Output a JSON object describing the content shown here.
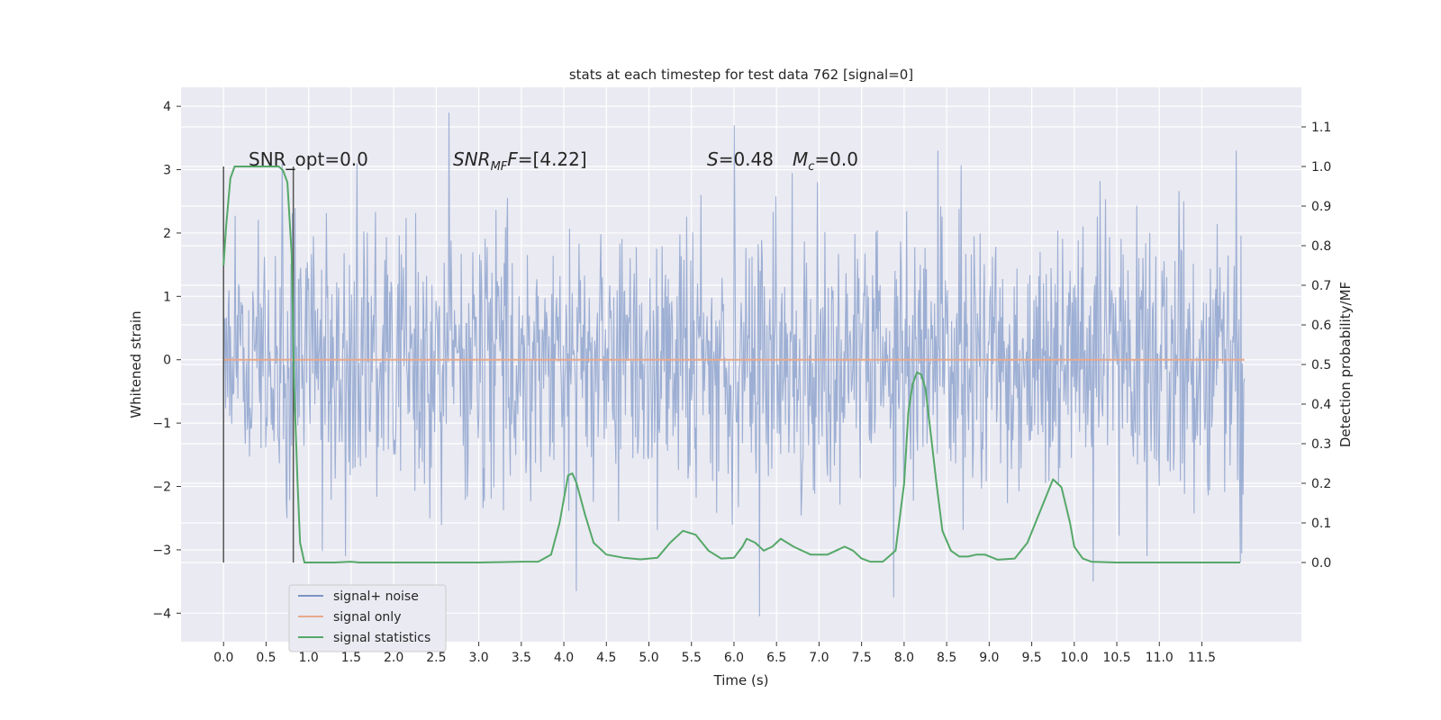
{
  "chart_data": {
    "type": "line",
    "title": "stats at each timestep for test data 762 [signal=0]",
    "xlabel": "Time (s)",
    "ylabel_left": "Whitened strain",
    "ylabel_right": "Detection probability/MF",
    "xlim": [
      -0.5,
      12.67
    ],
    "ylim_left": [
      -4.45,
      4.3
    ],
    "ylim_right": [
      -0.2,
      1.2
    ],
    "x_ticks": [
      "0.0",
      "0.5",
      "1.0",
      "1.5",
      "2.0",
      "2.5",
      "3.0",
      "3.5",
      "4.0",
      "4.5",
      "5.0",
      "5.5",
      "6.0",
      "6.5",
      "7.0",
      "7.5",
      "8.0",
      "8.5",
      "9.0",
      "9.5",
      "10.0",
      "10.5",
      "11.0",
      "11.5"
    ],
    "y_ticks_left": [
      "4",
      "3",
      "2",
      "1",
      "0",
      "−1",
      "−2",
      "−3",
      "−4"
    ],
    "y_ticks_right": [
      "1.1",
      "1.0",
      "0.9",
      "0.8",
      "0.7",
      "0.6",
      "0.5",
      "0.4",
      "0.3",
      "0.2",
      "0.1",
      "0.0"
    ],
    "grid": true,
    "legend": {
      "placement": "lower-left",
      "entries": [
        {
          "label": "signal+ noise",
          "color": "#7b94c6"
        },
        {
          "label": "signal only",
          "color": "#e8a98b"
        },
        {
          "label": "signal statistics",
          "color": "#55a868"
        }
      ]
    },
    "annotations": {
      "snr_opt": "SNR_opt=0.0",
      "snr_mf_main": "SNR",
      "snr_mf_sub": "MF",
      "snr_mf_value": "=[4.22]",
      "s_label": "S",
      "s_value": "=0.48",
      "mc_main": "M",
      "mc_sub": "c",
      "mc_value": "=0.0"
    },
    "vertical_lines_x": [
      0.0,
      0.82
    ],
    "vertical_lines_y_range": [
      -3.2,
      3.05
    ],
    "noise_series": {
      "name": "signal+ noise",
      "x_range": [
        0.0,
        12.0
      ],
      "samples": 1500,
      "sigma": 1.05,
      "peaks": [
        {
          "x": 2.65,
          "y": 3.9
        },
        {
          "x": 6.0,
          "y": 3.7
        },
        {
          "x": 8.4,
          "y": 3.3
        },
        {
          "x": 11.9,
          "y": 3.3
        },
        {
          "x": 6.3,
          "y": -4.05
        },
        {
          "x": 7.88,
          "y": -3.75
        },
        {
          "x": 4.15,
          "y": -3.65
        },
        {
          "x": 10.22,
          "y": -3.5
        },
        {
          "x": 11.95,
          "y": -3.2
        }
      ]
    },
    "signal_only_series": {
      "name": "signal only",
      "x": [
        0.0,
        12.0
      ],
      "y": [
        0.0,
        0.0
      ]
    },
    "statistics_series": {
      "name": "signal statistics",
      "x": [
        0.0,
        0.03,
        0.08,
        0.13,
        0.2,
        0.3,
        0.45,
        0.6,
        0.65,
        0.7,
        0.75,
        0.8,
        0.83,
        0.87,
        0.9,
        0.95,
        1.0,
        1.1,
        1.3,
        1.5,
        1.6,
        1.7,
        2.0,
        3.0,
        3.5,
        3.7,
        3.85,
        3.95,
        4.05,
        4.1,
        4.15,
        4.25,
        4.35,
        4.5,
        4.7,
        4.9,
        5.1,
        5.25,
        5.4,
        5.55,
        5.7,
        5.85,
        6.0,
        6.1,
        6.15,
        6.25,
        6.35,
        6.45,
        6.55,
        6.7,
        6.9,
        7.1,
        7.2,
        7.3,
        7.4,
        7.5,
        7.6,
        7.75,
        7.9,
        8.0,
        8.05,
        8.1,
        8.15,
        8.2,
        8.25,
        8.3,
        8.38,
        8.45,
        8.55,
        8.65,
        8.75,
        8.85,
        8.95,
        9.1,
        9.3,
        9.45,
        9.6,
        9.75,
        9.85,
        9.95,
        10.0,
        10.1,
        10.2,
        10.5,
        11.0,
        11.5,
        11.95
      ],
      "y": [
        0.75,
        0.85,
        0.97,
        1.0,
        1.0,
        1.0,
        1.0,
        1.0,
        1.0,
        0.99,
        0.96,
        0.78,
        0.45,
        0.2,
        0.05,
        0.0,
        0.0,
        0.0,
        0.0,
        0.002,
        0.0,
        0.0,
        0.0,
        0.0,
        0.002,
        0.002,
        0.02,
        0.1,
        0.22,
        0.225,
        0.2,
        0.12,
        0.05,
        0.02,
        0.012,
        0.008,
        0.012,
        0.05,
        0.08,
        0.07,
        0.03,
        0.01,
        0.012,
        0.04,
        0.06,
        0.05,
        0.03,
        0.04,
        0.06,
        0.04,
        0.02,
        0.02,
        0.03,
        0.04,
        0.03,
        0.01,
        0.002,
        0.002,
        0.03,
        0.2,
        0.38,
        0.45,
        0.48,
        0.475,
        0.44,
        0.35,
        0.2,
        0.08,
        0.03,
        0.015,
        0.015,
        0.02,
        0.02,
        0.007,
        0.01,
        0.05,
        0.13,
        0.21,
        0.19,
        0.1,
        0.04,
        0.01,
        0.002,
        0.0,
        0.0,
        0.0,
        0.0
      ]
    }
  }
}
